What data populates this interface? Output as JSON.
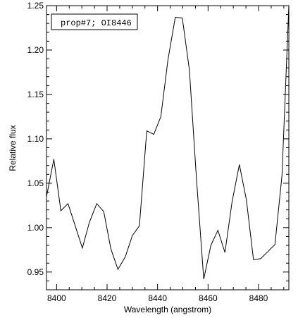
{
  "chart_data": {
    "type": "line",
    "title": "",
    "xlabel": "Wavelength (angstrom)",
    "ylabel": "Relative flux",
    "legend": "prop#7; OI8446",
    "legend_placement": "top-left",
    "xlim": [
      8396,
      8492
    ],
    "ylim": [
      0.93,
      1.25
    ],
    "x_ticks": [
      8400,
      8420,
      8440,
      8460,
      8480
    ],
    "y_ticks": [
      0.95,
      1.0,
      1.05,
      1.1,
      1.15,
      1.2,
      1.25
    ],
    "x_tick_labels": [
      "8400",
      "8420",
      "8440",
      "8460",
      "8480"
    ],
    "y_tick_labels": [
      "0.95",
      "1.00",
      "1.05",
      "1.10",
      "1.15",
      "1.20",
      "1.25"
    ],
    "series": [
      {
        "x": [
          8396.0,
          8398.9,
          8401.7,
          8404.5,
          8407.4,
          8410.2,
          8413.0,
          8415.9,
          8418.7,
          8421.5,
          8424.3,
          8427.2,
          8430.0,
          8432.8,
          8435.7,
          8438.5,
          8441.3,
          8444.1,
          8447.0,
          8449.8,
          8452.6,
          8455.4,
          8458.3,
          8461.1,
          8463.9,
          8466.7,
          8469.5,
          8472.4,
          8475.2,
          8478.0,
          8480.8,
          8483.7,
          8486.5,
          8489.3,
          8492.0
        ],
        "values": [
          1.035,
          1.077,
          1.019,
          1.027,
          1.002,
          0.977,
          1.006,
          1.027,
          1.018,
          0.976,
          0.953,
          0.967,
          0.991,
          1.002,
          1.109,
          1.105,
          1.125,
          1.189,
          1.237,
          1.236,
          1.178,
          1.056,
          0.942,
          0.98,
          0.997,
          0.972,
          1.029,
          1.071,
          1.031,
          0.964,
          0.965,
          0.973,
          0.981,
          1.059,
          1.25
        ]
      }
    ]
  }
}
